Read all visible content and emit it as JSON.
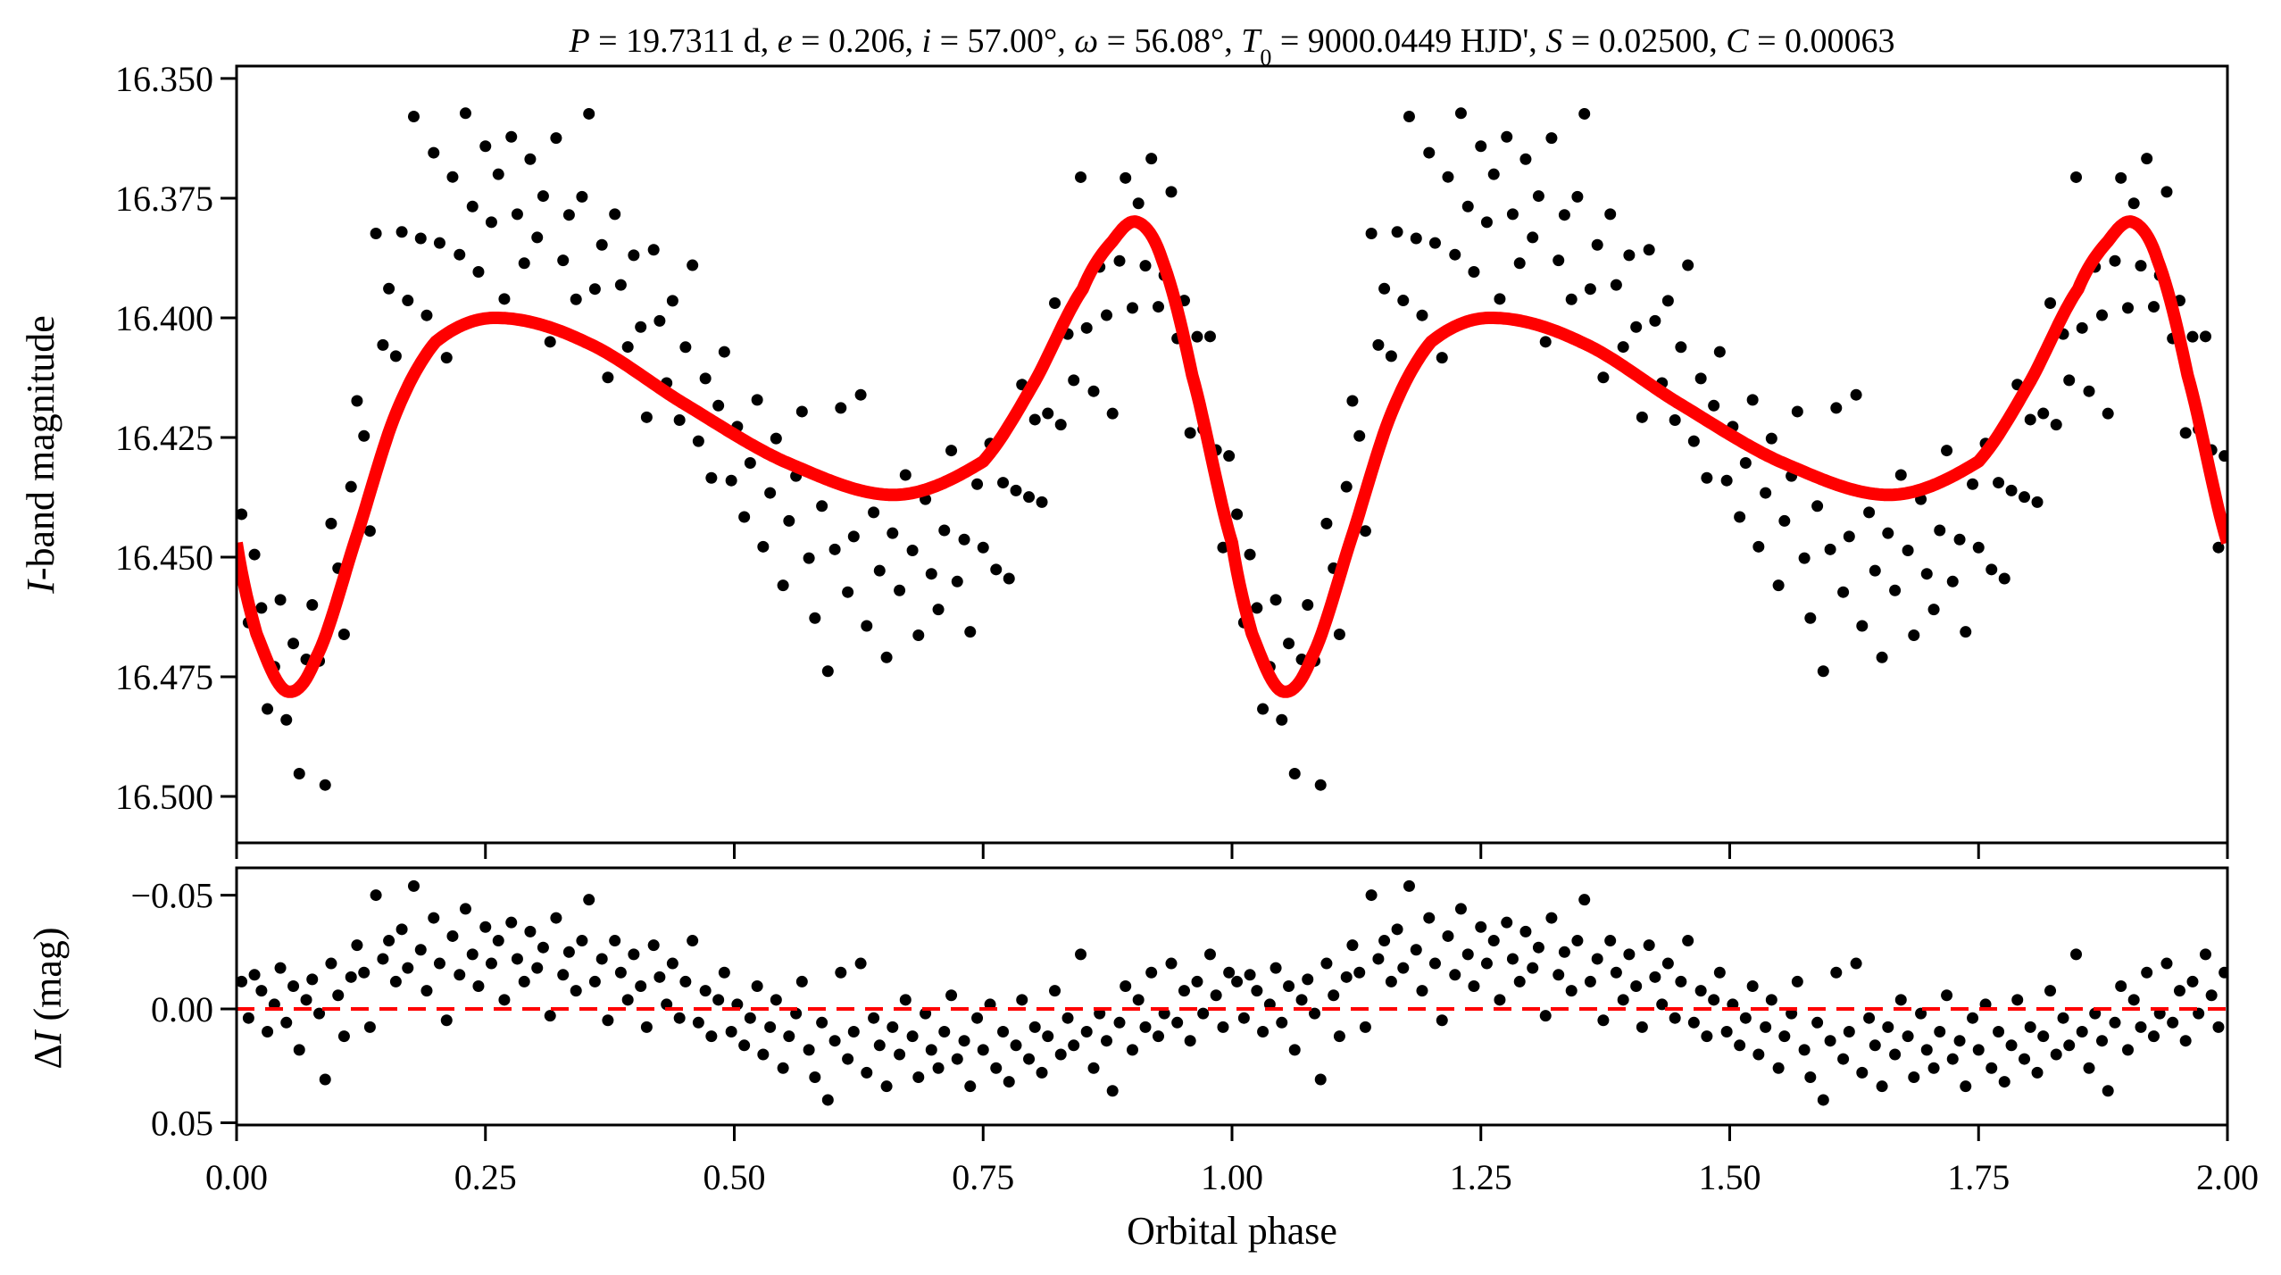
{
  "chart_data": [
    {
      "type": "scatter",
      "panel": "light-curve",
      "title_parts": [
        {
          "t": "P",
          "i": true
        },
        {
          "t": " = 19.7311 d, ",
          "i": false
        },
        {
          "t": "e",
          "i": true
        },
        {
          "t": " = 0.206, ",
          "i": false
        },
        {
          "t": "i",
          "i": true
        },
        {
          "t": " = 57.00°, ",
          "i": false
        },
        {
          "t": "ω",
          "i": true
        },
        {
          "t": " = 56.08°, ",
          "i": false
        },
        {
          "t": "T",
          "i": true
        },
        {
          "t": "0",
          "i": false,
          "sub": true
        },
        {
          "t": " = 9000.0449 HJD', ",
          "i": false
        },
        {
          "t": "S",
          "i": true
        },
        {
          "t": " = 0.02500, ",
          "i": false
        },
        {
          "t": "C",
          "i": true
        },
        {
          "t": " = 0.00063",
          "i": false
        }
      ],
      "ylabel_italic": "I",
      "ylabel_rest": "-band magnitude",
      "ylim": [
        16.3474,
        16.5097
      ],
      "y_inverted": true,
      "yticks": [
        "16.350",
        "16.375",
        "16.400",
        "16.425",
        "16.450",
        "16.475",
        "16.500"
      ],
      "xlim": [
        0,
        2
      ],
      "model_color": "#ff0000",
      "point_color": "#000000",
      "model_phase": [
        0.0,
        0.02,
        0.05,
        0.08,
        0.12,
        0.16,
        0.2,
        0.26,
        0.35,
        0.45,
        0.55,
        0.66,
        0.75,
        0.8,
        0.85,
        0.88,
        0.905,
        0.93,
        0.96
      ],
      "model_mag": [
        16.447,
        16.466,
        16.478,
        16.471,
        16.446,
        16.42,
        16.405,
        16.4,
        16.405,
        16.418,
        16.43,
        16.437,
        16.43,
        16.414,
        16.394,
        16.384,
        16.38,
        16.388,
        16.412
      ],
      "note": "observed magnitude = model + residual; data repeated over two phase cycles"
    },
    {
      "type": "scatter",
      "panel": "residuals",
      "ylabel_prefix": "Δ",
      "ylabel_italic": "I",
      "ylabel_rest": " (mag)",
      "ylim": [
        -0.062,
        0.051
      ],
      "y_inverted": true,
      "yticks": [
        "−0.05",
        "0.00",
        "0.05"
      ],
      "ytick_values": [
        -0.05,
        0.0,
        0.05
      ],
      "xlim": [
        0,
        2
      ],
      "xticks": [
        "0.00",
        "0.25",
        "0.50",
        "0.75",
        "1.00",
        "1.25",
        "1.50",
        "1.75",
        "2.00"
      ],
      "xlabel": "Orbital phase",
      "zero_line_color": "#ff0000",
      "residuals": [
        [
          0.005,
          -0.012
        ],
        [
          0.012,
          0.004
        ],
        [
          0.018,
          -0.015
        ],
        [
          0.025,
          -0.008
        ],
        [
          0.031,
          0.01
        ],
        [
          0.038,
          -0.002
        ],
        [
          0.044,
          -0.018
        ],
        [
          0.05,
          0.006
        ],
        [
          0.057,
          -0.01
        ],
        [
          0.063,
          0.018
        ],
        [
          0.07,
          -0.004
        ],
        [
          0.076,
          -0.013
        ],
        [
          0.083,
          0.002
        ],
        [
          0.089,
          0.031
        ],
        [
          0.095,
          -0.02
        ],
        [
          0.102,
          -0.006
        ],
        [
          0.108,
          0.012
        ],
        [
          0.115,
          -0.014
        ],
        [
          0.121,
          -0.028
        ],
        [
          0.128,
          -0.016
        ],
        [
          0.134,
          0.008
        ],
        [
          0.14,
          -0.05
        ],
        [
          0.147,
          -0.022
        ],
        [
          0.153,
          -0.03
        ],
        [
          0.16,
          -0.012
        ],
        [
          0.166,
          -0.035
        ],
        [
          0.172,
          -0.018
        ],
        [
          0.178,
          -0.054
        ],
        [
          0.185,
          -0.026
        ],
        [
          0.191,
          -0.008
        ],
        [
          0.198,
          -0.04
        ],
        [
          0.204,
          -0.02
        ],
        [
          0.211,
          0.005
        ],
        [
          0.217,
          -0.032
        ],
        [
          0.224,
          -0.015
        ],
        [
          0.23,
          -0.044
        ],
        [
          0.237,
          -0.024
        ],
        [
          0.243,
          -0.01
        ],
        [
          0.25,
          -0.036
        ],
        [
          0.256,
          -0.02
        ],
        [
          0.263,
          -0.03
        ],
        [
          0.269,
          -0.004
        ],
        [
          0.276,
          -0.038
        ],
        [
          0.282,
          -0.022
        ],
        [
          0.289,
          -0.012
        ],
        [
          0.295,
          -0.034
        ],
        [
          0.302,
          -0.018
        ],
        [
          0.308,
          -0.027
        ],
        [
          0.315,
          0.003
        ],
        [
          0.321,
          -0.04
        ],
        [
          0.328,
          -0.015
        ],
        [
          0.334,
          -0.025
        ],
        [
          0.341,
          -0.008
        ],
        [
          0.347,
          -0.03
        ],
        [
          0.354,
          -0.048
        ],
        [
          0.36,
          -0.012
        ],
        [
          0.367,
          -0.022
        ],
        [
          0.373,
          0.005
        ],
        [
          0.38,
          -0.03
        ],
        [
          0.386,
          -0.016
        ],
        [
          0.393,
          -0.004
        ],
        [
          0.399,
          -0.024
        ],
        [
          0.406,
          -0.01
        ],
        [
          0.412,
          0.008
        ],
        [
          0.419,
          -0.028
        ],
        [
          0.425,
          -0.014
        ],
        [
          0.432,
          -0.002
        ],
        [
          0.438,
          -0.02
        ],
        [
          0.445,
          0.004
        ],
        [
          0.451,
          -0.012
        ],
        [
          0.458,
          -0.03
        ],
        [
          0.464,
          0.006
        ],
        [
          0.471,
          -0.008
        ],
        [
          0.477,
          0.012
        ],
        [
          0.484,
          -0.004
        ],
        [
          0.49,
          -0.016
        ],
        [
          0.497,
          0.01
        ],
        [
          0.503,
          -0.002
        ],
        [
          0.51,
          0.016
        ],
        [
          0.516,
          0.004
        ],
        [
          0.523,
          -0.01
        ],
        [
          0.529,
          0.02
        ],
        [
          0.536,
          0.008
        ],
        [
          0.542,
          -0.004
        ],
        [
          0.549,
          0.026
        ],
        [
          0.555,
          0.012
        ],
        [
          0.562,
          0.002
        ],
        [
          0.568,
          -0.012
        ],
        [
          0.575,
          0.018
        ],
        [
          0.581,
          0.03
        ],
        [
          0.588,
          0.006
        ],
        [
          0.594,
          0.04
        ],
        [
          0.601,
          0.014
        ],
        [
          0.607,
          -0.016
        ],
        [
          0.614,
          0.022
        ],
        [
          0.62,
          0.01
        ],
        [
          0.627,
          -0.02
        ],
        [
          0.633,
          0.028
        ],
        [
          0.64,
          0.004
        ],
        [
          0.646,
          0.016
        ],
        [
          0.653,
          0.034
        ],
        [
          0.659,
          0.008
        ],
        [
          0.666,
          0.02
        ],
        [
          0.672,
          -0.004
        ],
        [
          0.679,
          0.012
        ],
        [
          0.685,
          0.03
        ],
        [
          0.692,
          0.002
        ],
        [
          0.698,
          0.018
        ],
        [
          0.705,
          0.026
        ],
        [
          0.711,
          0.01
        ],
        [
          0.718,
          -0.006
        ],
        [
          0.724,
          0.022
        ],
        [
          0.731,
          0.014
        ],
        [
          0.737,
          0.034
        ],
        [
          0.744,
          0.004
        ],
        [
          0.75,
          0.018
        ],
        [
          0.757,
          -0.002
        ],
        [
          0.763,
          0.026
        ],
        [
          0.77,
          0.01
        ],
        [
          0.776,
          0.032
        ],
        [
          0.783,
          0.016
        ],
        [
          0.789,
          -0.004
        ],
        [
          0.796,
          0.022
        ],
        [
          0.802,
          0.008
        ],
        [
          0.809,
          0.028
        ],
        [
          0.815,
          0.012
        ],
        [
          0.822,
          -0.008
        ],
        [
          0.828,
          0.02
        ],
        [
          0.835,
          0.004
        ],
        [
          0.841,
          0.016
        ],
        [
          0.848,
          -0.024
        ],
        [
          0.854,
          0.01
        ],
        [
          0.861,
          0.026
        ],
        [
          0.867,
          0.002
        ],
        [
          0.874,
          0.014
        ],
        [
          0.88,
          0.036
        ],
        [
          0.887,
          0.006
        ],
        [
          0.893,
          -0.01
        ],
        [
          0.9,
          0.018
        ],
        [
          0.906,
          -0.004
        ],
        [
          0.913,
          0.008
        ],
        [
          0.919,
          -0.016
        ],
        [
          0.926,
          0.012
        ],
        [
          0.932,
          0.002
        ],
        [
          0.939,
          -0.02
        ],
        [
          0.945,
          0.006
        ],
        [
          0.952,
          -0.008
        ],
        [
          0.958,
          0.014
        ],
        [
          0.965,
          -0.012
        ],
        [
          0.971,
          0.002
        ],
        [
          0.978,
          -0.024
        ],
        [
          0.984,
          -0.006
        ],
        [
          0.991,
          0.008
        ],
        [
          0.997,
          -0.016
        ]
      ]
    }
  ]
}
